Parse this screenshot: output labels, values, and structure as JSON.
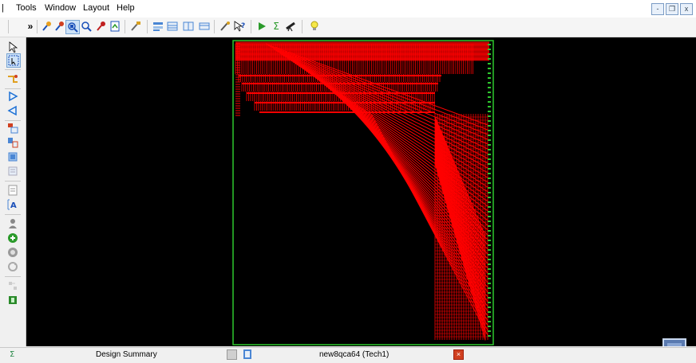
{
  "menu": {
    "items": [
      "Tools",
      "Window",
      "Layout",
      "Help"
    ]
  },
  "window_controls": {
    "minimize": "-",
    "restore": "❐",
    "close": "x"
  },
  "toolbar": {
    "overflow_glyph": "»",
    "icons": [
      "zoom-in-icon",
      "zoom-out-icon",
      "zoom-fit-icon",
      "zoom-area-icon",
      "zoom-select-icon",
      "zoom-full-icon",
      "pan-icon",
      "layer-up-icon",
      "layer-down-icon",
      "grid-icon",
      "view-icon",
      "probe-icon",
      "help-pointer-icon",
      "run-icon",
      "sum-icon",
      "telescope-icon",
      "lightbulb-icon"
    ]
  },
  "left_toolbar": {
    "icons": [
      "select-arrow-icon",
      "select-area-icon",
      "route-icon",
      "back-icon",
      "forward-icon",
      "place-icon",
      "instance-icon",
      "cell-icon",
      "layer-icon",
      "edit-icon",
      "text-icon",
      "person-icon",
      "add-icon",
      "circle-icon",
      "refresh-icon",
      "grid-small-icon",
      "component-icon"
    ]
  },
  "status": {
    "left_icon": "sigma-icon",
    "tab1_label": "Design Summary",
    "tab2_label": "new8qca64 (Tech1)"
  },
  "colors": {
    "canvas_bg": "#000000",
    "route": "#ff0000",
    "boundary": "#2ec82e"
  }
}
